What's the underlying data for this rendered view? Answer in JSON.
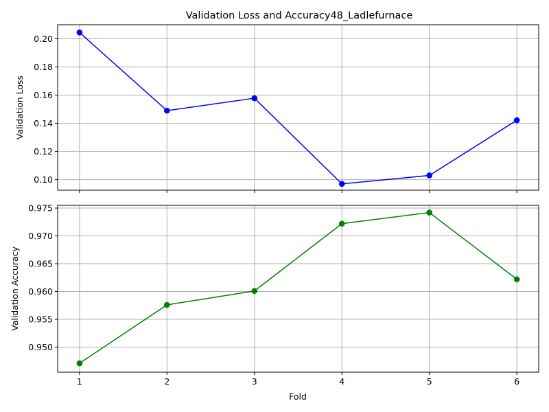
{
  "chart_data": {
    "type": "line",
    "title": "Validation Loss and Accuracy48_Ladlefurnace",
    "xlabel": "Fold",
    "x": [
      1,
      2,
      3,
      4,
      5,
      6
    ],
    "xticks": [
      "1",
      "2",
      "3",
      "4",
      "5",
      "6"
    ],
    "grid": true,
    "panels": [
      {
        "id": "loss",
        "ylabel": "Validation Loss",
        "color": "#0000ff",
        "ylim": [
          0.0925,
          0.21
        ],
        "yticks": [
          0.1,
          0.12,
          0.14,
          0.16,
          0.18,
          0.2
        ],
        "ytick_labels": [
          "0.10",
          "0.12",
          "0.14",
          "0.16",
          "0.18",
          "0.20"
        ],
        "values": [
          0.2045,
          0.149,
          0.1578,
          0.097,
          0.103,
          0.1422
        ]
      },
      {
        "id": "accuracy",
        "ylabel": "Validation Accuracy",
        "color": "#008000",
        "ylim": [
          0.9455,
          0.9755
        ],
        "yticks": [
          0.95,
          0.955,
          0.96,
          0.965,
          0.97,
          0.975
        ],
        "ytick_labels": [
          "0.950",
          "0.955",
          "0.960",
          "0.965",
          "0.970",
          "0.975"
        ],
        "values": [
          0.9471,
          0.9576,
          0.9601,
          0.9722,
          0.9742,
          0.9622
        ]
      }
    ]
  }
}
